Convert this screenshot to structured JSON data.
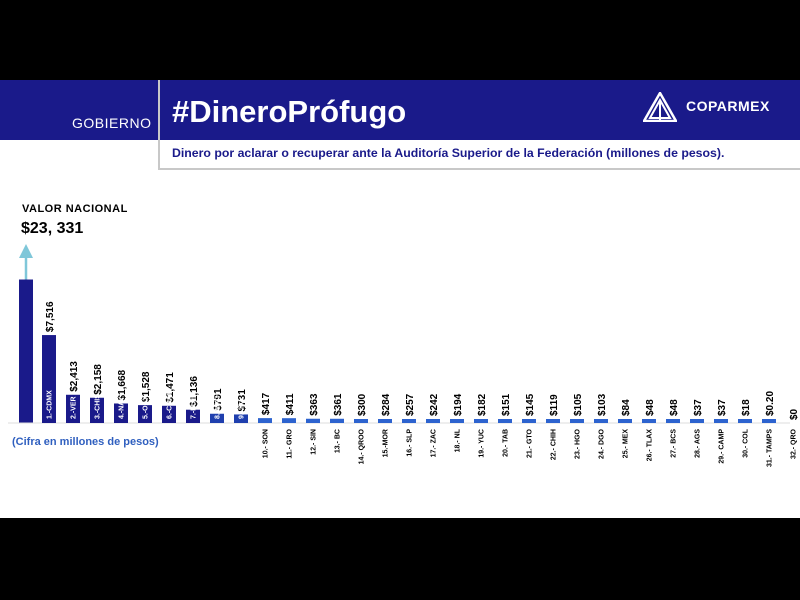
{
  "header": {
    "section": "GOBIERNO",
    "title": "#DineroPrófugo",
    "brand": "COPARMEX",
    "subtitle": "Dinero por aclarar o recuperar ante la Auditoría Superior de la Federación (millones de pesos)."
  },
  "national": {
    "label": "VALOR NACIONAL",
    "value_label": "$23, 331"
  },
  "note": "(Cifra en millones de pesos)",
  "colors": {
    "banner": "#1a1a8a",
    "bar_dark": "#1a1a8a",
    "bar_mid": "#1f3fae",
    "bar_light": "#2d63cf",
    "arrow": "#7fc7d9",
    "note": "#2f5fbf"
  },
  "chart_data": {
    "type": "bar",
    "national_total": 23331,
    "categories": [
      "1.-CDMX",
      "2.-VER",
      "3.-CHIS",
      "4.-NAY",
      "5.-OAX",
      "6.-COAH",
      "7.-PUE",
      "8.-MICH",
      "9.-JAL",
      "10.- SON",
      "11.- GRO",
      "12.- SIN",
      "13.- BC",
      "14.- QROO",
      "15.-MOR",
      "16.- SLP",
      "17.- ZAC",
      "18.- NL",
      "19.- YUC",
      "20.- TAB",
      "21.- GTO",
      "22.- CHIH",
      "23.- HGO",
      "24.- DGO",
      "25.- MEX",
      "26.- TLAX",
      "27.- BCS",
      "28.- AGS",
      "29.- CAMP",
      "30.- COL",
      "31.- TAMPS",
      "32.- QRO"
    ],
    "values": [
      7516,
      2413,
      2158,
      1668,
      1528,
      1471,
      1136,
      791,
      731,
      417,
      411,
      363,
      361,
      300,
      284,
      257,
      242,
      194,
      182,
      151,
      145,
      119,
      105,
      103,
      84,
      48,
      48,
      37,
      37,
      18,
      0.2,
      0
    ],
    "value_labels": [
      "$7,516",
      "$2,413",
      "$2,158",
      "$1,668",
      "$1,528",
      "$1,471",
      "$1,136",
      "$791",
      "$731",
      "$417",
      "$411",
      "$363",
      "$361",
      "$300",
      "$284",
      "$257",
      "$242",
      "$194",
      "$182",
      "$151",
      "$145",
      "$119",
      "$105",
      "$103",
      "$84",
      "$48",
      "$48",
      "$37",
      "$37",
      "$18",
      "$0.20",
      "$0"
    ]
  }
}
